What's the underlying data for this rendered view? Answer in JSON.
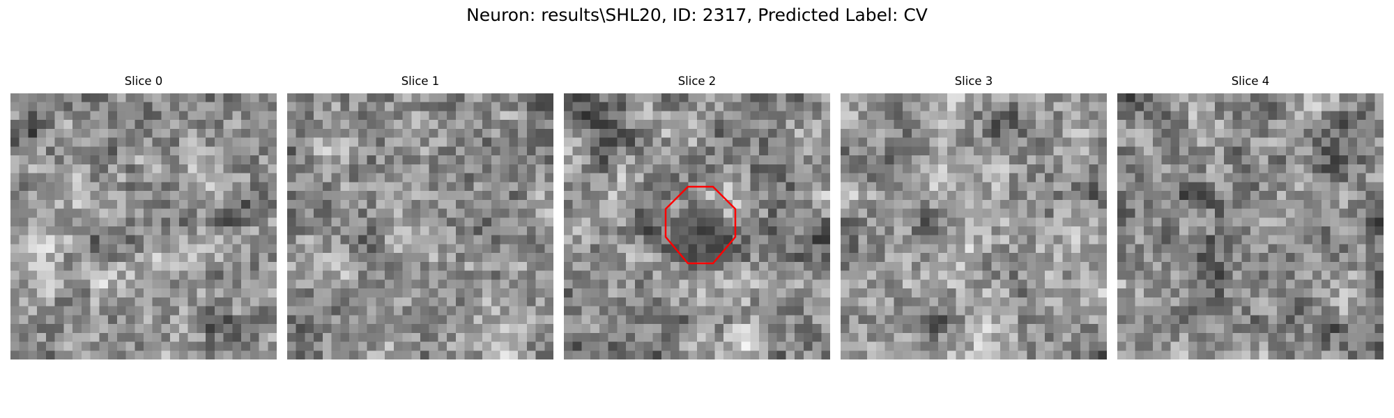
{
  "figure": {
    "title": "Neuron: results\\SHL20, ID: 2317, Predicted Label: CV"
  },
  "colormap": "gray",
  "overlay_color": "#ff0000",
  "slices": [
    {
      "label": "Slice 0",
      "seed": 11,
      "has_overlay": false
    },
    {
      "label": "Slice 1",
      "seed": 23,
      "has_overlay": false
    },
    {
      "label": "Slice 2",
      "seed": 37,
      "has_overlay": true
    },
    {
      "label": "Slice 3",
      "seed": 41,
      "has_overlay": false
    },
    {
      "label": "Slice 4",
      "seed": 59,
      "has_overlay": false
    }
  ]
}
